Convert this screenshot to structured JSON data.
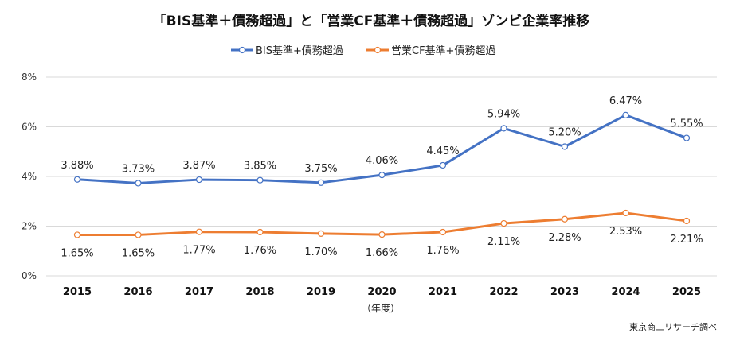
{
  "chart_data": {
    "type": "line",
    "title": "「BIS基準＋債務超過」と「営業CF基準＋債務超過」ゾンビ企業率推移",
    "xlabel": "（年度）",
    "ylabel": "",
    "source": "東京商工リサーチ調べ",
    "categories": [
      "2015",
      "2016",
      "2017",
      "2018",
      "2019",
      "2020",
      "2021",
      "2022",
      "2023",
      "2024",
      "2025"
    ],
    "ylim": [
      0,
      8
    ],
    "yticks": [
      0,
      2,
      4,
      6,
      8
    ],
    "ytick_labels": [
      "0%",
      "2%",
      "4%",
      "6%",
      "8%"
    ],
    "grid": true,
    "legend": "top",
    "series": [
      {
        "name": "BIS基準+債務超過",
        "color": "#4472C4",
        "values": [
          3.88,
          3.73,
          3.87,
          3.85,
          3.75,
          4.06,
          4.45,
          5.94,
          5.2,
          6.47,
          5.55
        ],
        "labels": [
          "3.88%",
          "3.73%",
          "3.87%",
          "3.85%",
          "3.75%",
          "4.06%",
          "4.45%",
          "5.94%",
          "5.20%",
          "6.47%",
          "5.55%"
        ],
        "label_position": "above"
      },
      {
        "name": "営業CF基準+債務超過",
        "color": "#ED7D31",
        "values": [
          1.65,
          1.65,
          1.77,
          1.76,
          1.7,
          1.66,
          1.76,
          2.11,
          2.28,
          2.53,
          2.21
        ],
        "labels": [
          "1.65%",
          "1.65%",
          "1.77%",
          "1.76%",
          "1.70%",
          "1.66%",
          "1.76%",
          "2.11%",
          "2.28%",
          "2.53%",
          "2.21%"
        ],
        "label_position": "below"
      }
    ]
  }
}
